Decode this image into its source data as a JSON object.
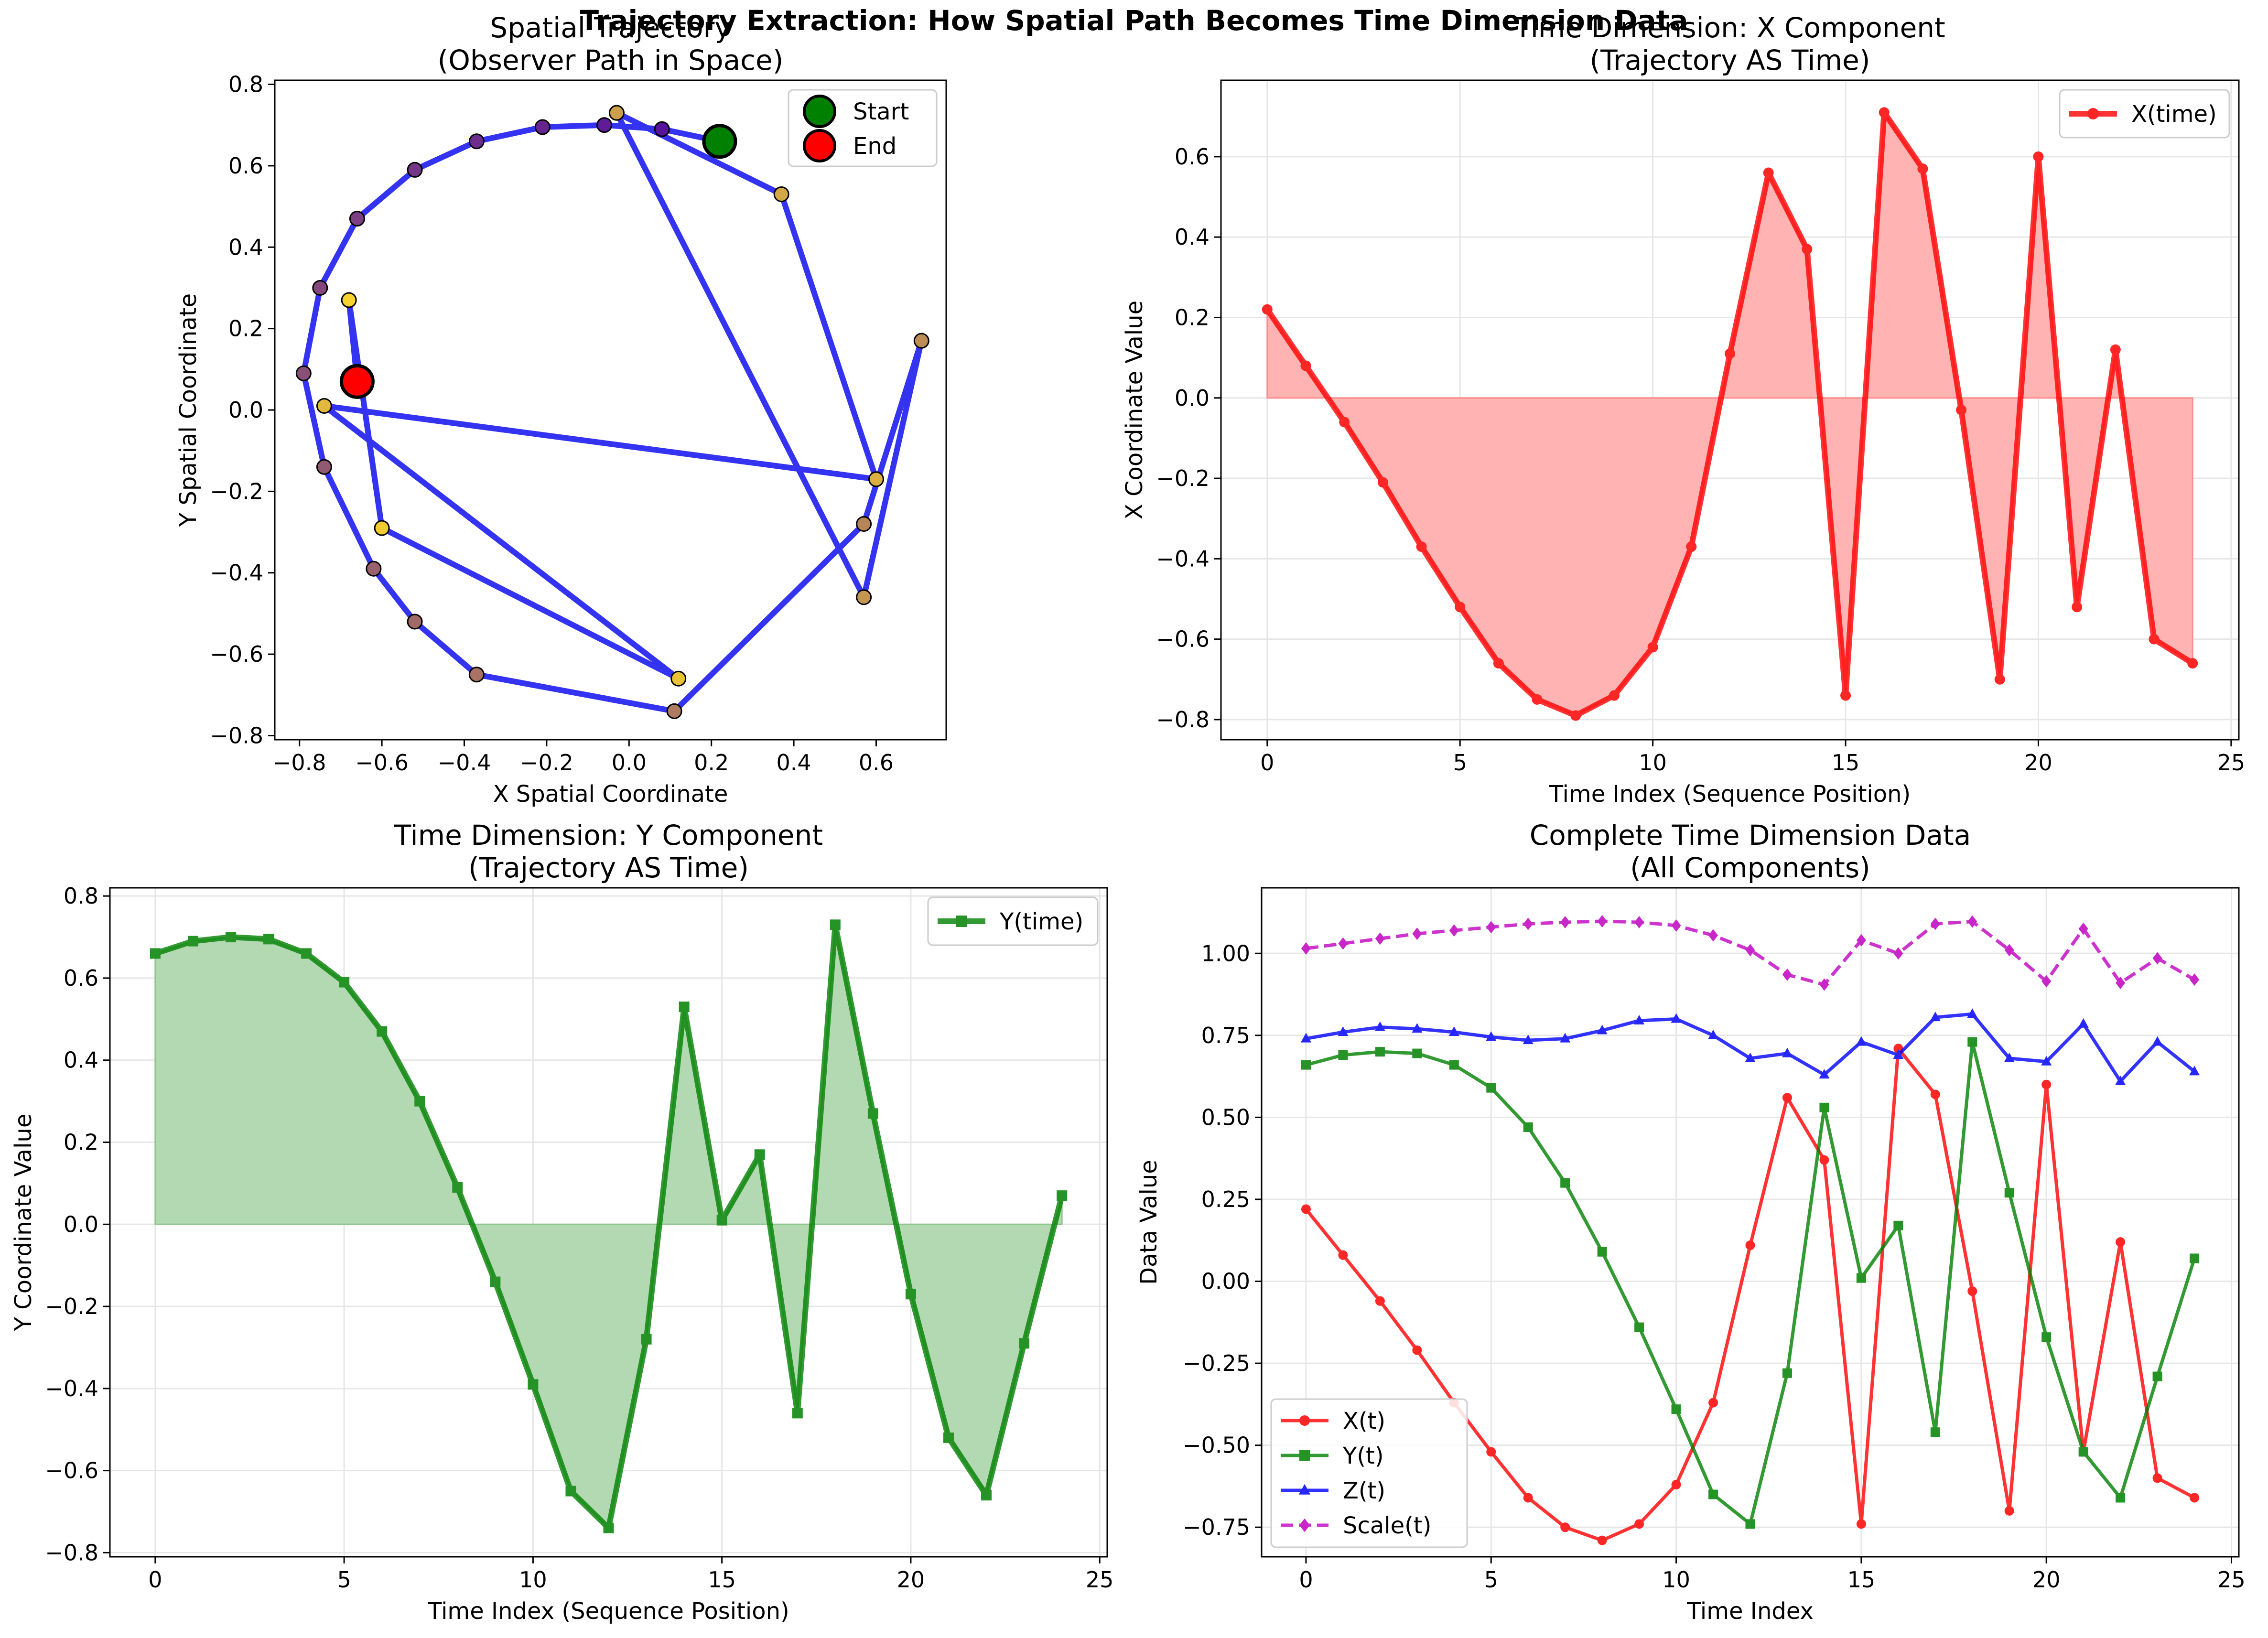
{
  "suptitle": "Trajectory Extraction: How Spatial Path Becomes Time Dimension Data",
  "chart_data": [
    {
      "type": "line",
      "title": "Spatial Trajectory\n(Observer Path in Space)",
      "xlabel": "X Spatial Coordinate",
      "ylabel": "Y Spatial Coordinate",
      "xlim": [
        -0.86,
        0.77
      ],
      "ylim": [
        -0.81,
        0.81
      ],
      "xticks": [
        -0.8,
        -0.6,
        -0.4,
        -0.2,
        0.0,
        0.2,
        0.4,
        0.6
      ],
      "xtick_labels": [
        "−0.8",
        "−0.6",
        "−0.4",
        "−0.2",
        "0.0",
        "0.2",
        "0.4",
        "0.6"
      ],
      "yticks": [
        -0.8,
        -0.6,
        -0.4,
        -0.2,
        0.0,
        0.2,
        0.4,
        0.6,
        0.8
      ],
      "ytick_labels": [
        "−0.8",
        "−0.6",
        "−0.4",
        "−0.2",
        "0.0",
        "0.2",
        "0.4",
        "0.6",
        "0.8"
      ],
      "grid": false,
      "legend": "top-right",
      "legend_entries": [
        "Start",
        "End"
      ],
      "line_color": "#0000ee",
      "start_color": "#008000",
      "end_color": "#ff0000",
      "x": [
        0.22,
        0.08,
        -0.06,
        -0.21,
        -0.37,
        -0.52,
        -0.66,
        -0.75,
        -0.79,
        -0.74,
        -0.62,
        -0.52,
        -0.37,
        0.11,
        0.57,
        0.71,
        0.57,
        -0.03,
        0.37,
        0.6,
        -0.74,
        0.12,
        -0.6,
        -0.68,
        -0.66
      ],
      "y": [
        0.66,
        0.69,
        0.7,
        0.695,
        0.66,
        0.59,
        0.47,
        0.3,
        0.09,
        -0.14,
        -0.39,
        -0.52,
        -0.65,
        -0.74,
        -0.28,
        0.17,
        -0.46,
        0.73,
        0.53,
        -0.17,
        0.01,
        -0.66,
        -0.29,
        0.27,
        0.07
      ]
    },
    {
      "type": "area",
      "title": "Time Dimension: X Component\n(Trajectory AS Time)",
      "xlabel": "Time Index (Sequence Position)",
      "ylabel": "X Coordinate Value",
      "xlim": [
        -1.2,
        25.2
      ],
      "ylim": [
        -0.85,
        0.79
      ],
      "xticks": [
        0,
        5,
        10,
        15,
        20,
        25
      ],
      "xtick_labels": [
        "0",
        "5",
        "10",
        "15",
        "20",
        "25"
      ],
      "yticks": [
        -0.8,
        -0.6,
        -0.4,
        -0.2,
        0.0,
        0.2,
        0.4,
        0.6
      ],
      "ytick_labels": [
        "−0.8",
        "−0.6",
        "−0.4",
        "−0.2",
        "0.0",
        "0.2",
        "0.4",
        "0.6"
      ],
      "grid": true,
      "legend": "top-right",
      "color": "#ff0000",
      "series": [
        {
          "name": "X(time)",
          "values": [
            0.22,
            0.08,
            -0.06,
            -0.21,
            -0.37,
            -0.52,
            -0.66,
            -0.75,
            -0.79,
            -0.74,
            -0.62,
            -0.37,
            0.11,
            0.56,
            0.37,
            -0.74,
            0.71,
            0.57,
            -0.03,
            -0.7,
            0.6,
            -0.52,
            0.12,
            -0.6,
            -0.66
          ]
        }
      ]
    },
    {
      "type": "area",
      "title": "Time Dimension: Y Component\n(Trajectory AS Time)",
      "xlabel": "Time Index (Sequence Position)",
      "ylabel": "Y Coordinate Value",
      "xlim": [
        -1.2,
        25.2
      ],
      "ylim": [
        -0.81,
        0.82
      ],
      "xticks": [
        0,
        5,
        10,
        15,
        20,
        25
      ],
      "xtick_labels": [
        "0",
        "5",
        "10",
        "15",
        "20",
        "25"
      ],
      "yticks": [
        -0.8,
        -0.6,
        -0.4,
        -0.2,
        0.0,
        0.2,
        0.4,
        0.6,
        0.8
      ],
      "ytick_labels": [
        "−0.8",
        "−0.6",
        "−0.4",
        "−0.2",
        "0.0",
        "0.2",
        "0.4",
        "0.6",
        "0.8"
      ],
      "grid": true,
      "legend": "top-right",
      "color": "#008000",
      "series": [
        {
          "name": "Y(time)",
          "values": [
            0.66,
            0.69,
            0.7,
            0.695,
            0.66,
            0.59,
            0.47,
            0.3,
            0.09,
            -0.14,
            -0.39,
            -0.65,
            -0.74,
            -0.28,
            0.53,
            0.01,
            0.17,
            -0.46,
            0.73,
            0.27,
            -0.17,
            -0.52,
            -0.66,
            -0.29,
            0.07
          ]
        }
      ]
    },
    {
      "type": "line",
      "title": "Complete Time Dimension Data\n(All Components)",
      "xlabel": "Time Index",
      "ylabel": "Data Value",
      "xlim": [
        -1.2,
        25.2
      ],
      "ylim": [
        -0.84,
        1.2
      ],
      "xticks": [
        0,
        5,
        10,
        15,
        20,
        25
      ],
      "xtick_labels": [
        "0",
        "5",
        "10",
        "15",
        "20",
        "25"
      ],
      "yticks": [
        -0.75,
        -0.5,
        -0.25,
        0.0,
        0.25,
        0.5,
        0.75,
        1.0
      ],
      "ytick_labels": [
        "−0.75",
        "−0.50",
        "−0.25",
        "0.00",
        "0.25",
        "0.50",
        "0.75",
        "1.00"
      ],
      "grid": true,
      "legend": "bottom-left",
      "series": [
        {
          "name": "X(t)",
          "color": "#ff0000",
          "marker": "circle",
          "dashed": false,
          "values": [
            0.22,
            0.08,
            -0.06,
            -0.21,
            -0.37,
            -0.52,
            -0.66,
            -0.75,
            -0.79,
            -0.74,
            -0.62,
            -0.37,
            0.11,
            0.56,
            0.37,
            -0.74,
            0.71,
            0.57,
            -0.03,
            -0.7,
            0.6,
            -0.52,
            0.12,
            -0.6,
            -0.66
          ]
        },
        {
          "name": "Y(t)",
          "color": "#008000",
          "marker": "square",
          "dashed": false,
          "values": [
            0.66,
            0.69,
            0.7,
            0.695,
            0.66,
            0.59,
            0.47,
            0.3,
            0.09,
            -0.14,
            -0.39,
            -0.65,
            -0.74,
            -0.28,
            0.53,
            0.01,
            0.17,
            -0.46,
            0.73,
            0.27,
            -0.17,
            -0.52,
            -0.66,
            -0.29,
            0.07
          ]
        },
        {
          "name": "Z(t)",
          "color": "#0000ff",
          "marker": "triangle",
          "dashed": false,
          "values": [
            0.74,
            0.76,
            0.775,
            0.77,
            0.76,
            0.745,
            0.735,
            0.74,
            0.765,
            0.795,
            0.8,
            0.75,
            0.68,
            0.695,
            0.63,
            0.73,
            0.69,
            0.805,
            0.815,
            0.68,
            0.67,
            0.785,
            0.61,
            0.73,
            0.64
          ]
        },
        {
          "name": "Scale(t)",
          "color": "#c000c0",
          "marker": "diamond",
          "dashed": true,
          "values": [
            1.015,
            1.03,
            1.045,
            1.06,
            1.07,
            1.08,
            1.09,
            1.095,
            1.098,
            1.095,
            1.085,
            1.055,
            1.01,
            0.935,
            0.905,
            1.04,
            1.0,
            1.09,
            1.097,
            1.01,
            0.915,
            1.075,
            0.91,
            0.985,
            0.92
          ]
        }
      ]
    }
  ]
}
